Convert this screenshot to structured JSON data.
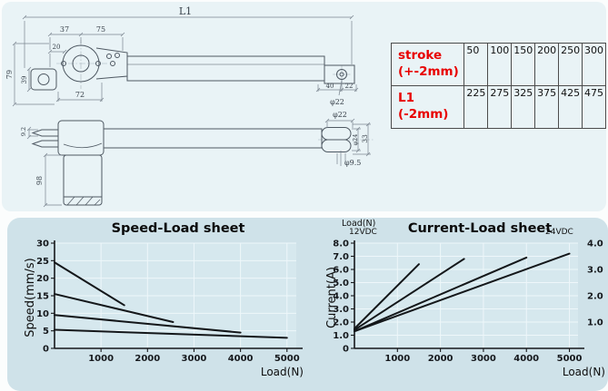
{
  "drawing": {
    "top_view": {
      "dims": {
        "l1": "L1",
        "d37": "37",
        "d75": "75",
        "d20": "20",
        "d79": "79",
        "d39": "39",
        "d72": "72",
        "d40": "40",
        "d22": "22",
        "phi22": "φ22"
      }
    },
    "side_view": {
      "dims": {
        "d92": "9.2",
        "d98": "98",
        "phi22": "φ22",
        "phi24": "φ24",
        "d33": "33",
        "phi95": "φ9.5"
      }
    }
  },
  "spec_table": {
    "label_color": "#e80000",
    "rows": [
      {
        "label_line1": "stroke",
        "label_line2": "(+-2mm)",
        "values": [
          "50",
          "100",
          "150",
          "200",
          "250",
          "300"
        ]
      },
      {
        "label_line1": "L1 (-2mm)",
        "label_line2": "",
        "values": [
          "225",
          "275",
          "325",
          "375",
          "425",
          "475"
        ]
      }
    ]
  },
  "chart_data": [
    {
      "type": "line",
      "title": "Speed-Load sheet",
      "xlabel": "Load(N)",
      "ylabel": "Speed(mm/s)",
      "xlim": [
        0,
        5200
      ],
      "ylim": [
        0,
        30
      ],
      "xticks": [
        1000,
        2000,
        3000,
        4000,
        5000
      ],
      "yticks": [
        0,
        5,
        10,
        15,
        20,
        25,
        30
      ],
      "grid": true,
      "legend": "none",
      "series": [
        {
          "name": "curve-1",
          "points": [
            [
              0,
              24.5
            ],
            [
              1500,
              12.3
            ]
          ]
        },
        {
          "name": "curve-2",
          "points": [
            [
              0,
              15.5
            ],
            [
              2550,
              7.5
            ]
          ]
        },
        {
          "name": "curve-3",
          "points": [
            [
              0,
              9.5
            ],
            [
              4000,
              4.5
            ]
          ]
        },
        {
          "name": "curve-4",
          "points": [
            [
              0,
              5.3
            ],
            [
              5000,
              3.0
            ]
          ]
        }
      ]
    },
    {
      "type": "line",
      "title": "Current-Load sheet",
      "xlabel": "Load(N)",
      "ylabel": "Current(A)",
      "corner_label": "Load(N)",
      "left_axis_voltage": "12VDC",
      "right_axis_voltage": "24VDC",
      "xlim": [
        0,
        5200
      ],
      "ylim": [
        0,
        8
      ],
      "xticks": [
        1000,
        2000,
        3000,
        4000,
        5000
      ],
      "yticks": [
        0,
        1,
        2,
        3,
        4,
        5,
        6,
        7,
        8
      ],
      "ytick_labels": [
        "0",
        "1.0",
        "2.0",
        "3.0",
        "4.0",
        "5.0",
        "6.0",
        "7.0",
        "8.0"
      ],
      "right_yticks": [
        {
          "value": 2,
          "label": "1.0"
        },
        {
          "value": 4,
          "label": "2.0"
        },
        {
          "value": 6,
          "label": "3.0"
        },
        {
          "value": 8,
          "label": "4.0"
        }
      ],
      "grid": true,
      "legend": "none",
      "series": [
        {
          "name": "12vdc-fast",
          "points": [
            [
              0,
              1.5
            ],
            [
              1500,
              6.4
            ]
          ]
        },
        {
          "name": "12vdc-slow",
          "points": [
            [
              0,
              1.4
            ],
            [
              2550,
              6.8
            ]
          ]
        },
        {
          "name": "24vdc-fast",
          "points": [
            [
              0,
              1.3
            ],
            [
              4000,
              6.9
            ]
          ]
        },
        {
          "name": "24vdc-slow",
          "points": [
            [
              0,
              1.3
            ],
            [
              5000,
              7.2
            ]
          ]
        }
      ]
    }
  ]
}
